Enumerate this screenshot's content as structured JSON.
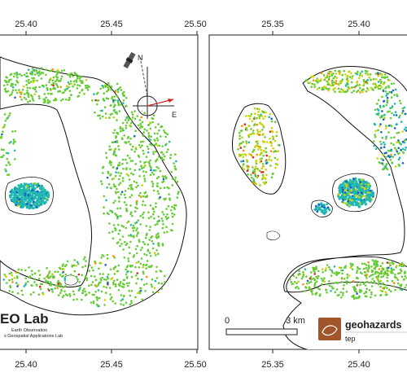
{
  "colors": {
    "low": "#1565c0",
    "mid": "#1fb8b0",
    "stable": "#66cc33",
    "warm": "#c8d400",
    "high": "#ff8c00",
    "max": "#e02020",
    "coast": "#111111"
  },
  "left_panel": {
    "top_ticks": [
      "25.40",
      "25.45",
      "25.50"
    ],
    "bottom_ticks": [
      "25.40",
      "25.45",
      "25.50"
    ],
    "compass": {
      "north_label": "N",
      "east_label": "E",
      "satellite_icon": "satellite-icon"
    },
    "logo": {
      "title": "EO Lab",
      "line1": "Earth Observation",
      "line2": "s Geospatial Applications Lab"
    }
  },
  "right_panel": {
    "top_ticks": [
      "25.35",
      "25.40"
    ],
    "bottom_ticks": [
      "25.35",
      "25.40"
    ],
    "scalebar": {
      "start_label": "0",
      "end_label": "3 km"
    },
    "logo": {
      "title": "geohazards",
      "subtitle": "tep",
      "icon": "geohazards-logo-icon"
    }
  }
}
